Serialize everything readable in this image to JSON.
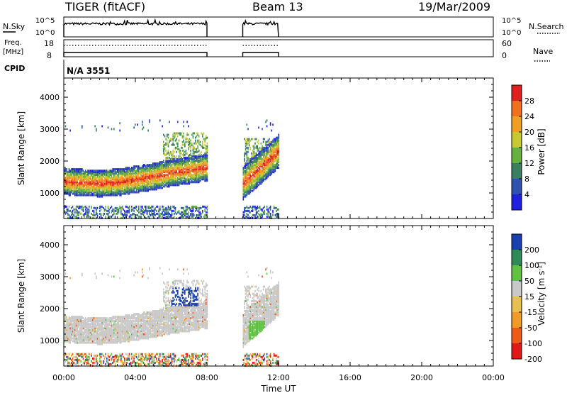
{
  "header": {
    "radar": "TIGER (fitACF)",
    "beam": "Beam 13",
    "date": "19/Mar/2009"
  },
  "strip_labels": {
    "nsky": "N.Sky",
    "nsearch": "N.Search",
    "freq_line1": "Freq.",
    "freq_line2": "[MHz]",
    "nave": "Nave",
    "cpid": "CPID",
    "cpid_value": "N/A 3551"
  },
  "strip_ticks": {
    "noise_left": [
      "10^5",
      "10^0"
    ],
    "noise_right": [
      "10^5",
      "10^0"
    ],
    "freq_left": [
      "18",
      "8"
    ],
    "nave_right": [
      "60",
      "0"
    ]
  },
  "colors": {
    "power_scale": [
      "#1f1fe0",
      "#2f52b0",
      "#3a8060",
      "#66b040",
      "#c8c830",
      "#f0a020",
      "#f07020",
      "#e02020"
    ],
    "velocity_scale": [
      "#e01818",
      "#f05a18",
      "#f09a28",
      "#e8c050",
      "#c8c8c8",
      "#60c040",
      "#2e8b57",
      "#1a3fb0"
    ]
  },
  "chart_data": [
    {
      "type": "heatmap",
      "panel": "power",
      "xlabel": "",
      "ylabel": "Slant Range [km]",
      "y_ticks": [
        "1000",
        "2000",
        "3000",
        "4000"
      ],
      "ylim": [
        200,
        4600
      ],
      "xlim_hours": [
        0,
        24
      ],
      "colorbar_label": "Power [dB]",
      "colorbar_ticks": [
        "4",
        "8",
        "12",
        "16",
        "20",
        "24",
        "28"
      ],
      "data_intervals_hours": [
        [
          0,
          8
        ],
        [
          10,
          12
        ]
      ],
      "echo_band": {
        "hours": [
          0,
          1,
          2,
          3,
          4,
          5,
          6,
          7,
          8
        ],
        "center_km": [
          1350,
          1310,
          1290,
          1320,
          1410,
          1500,
          1620,
          1700,
          1780
        ],
        "peak_power_db": [
          24,
          26,
          28,
          26,
          26,
          28,
          28,
          28,
          28
        ]
      }
    },
    {
      "type": "heatmap",
      "panel": "velocity",
      "xlabel": "Time UT",
      "ylabel": "Slant Range [km]",
      "y_ticks": [
        "1000",
        "2000",
        "3000",
        "4000"
      ],
      "x_ticks": [
        "00:00",
        "04:00",
        "08:00",
        "12:00",
        "16:00",
        "20:00",
        "00:00"
      ],
      "ylim": [
        200,
        4600
      ],
      "xlim_hours": [
        0,
        24
      ],
      "colorbar_label": "Velocity [m s^-1]",
      "colorbar_ticks": [
        "200",
        "100",
        "50",
        "15",
        "-15",
        "-50",
        "-100",
        "-200"
      ],
      "data_intervals_hours": [
        [
          0,
          8
        ],
        [
          10,
          12
        ]
      ]
    }
  ]
}
